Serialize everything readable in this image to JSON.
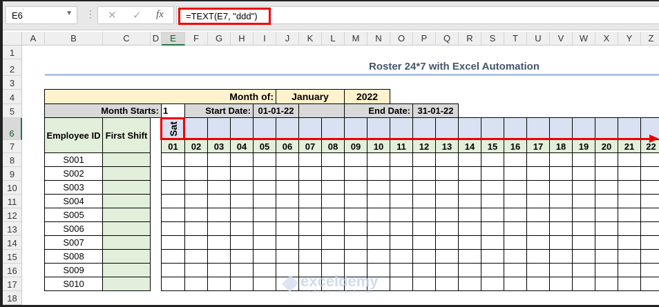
{
  "formula_bar": {
    "name_box": "E6",
    "formula": "=TEXT(E7, \"ddd\")",
    "cancel_icon": "✕",
    "enter_icon": "✓",
    "fx_icon": "fx"
  },
  "columns": [
    "A",
    "B",
    "C",
    "D",
    "E",
    "F",
    "G",
    "H",
    "I",
    "J",
    "K",
    "L",
    "M",
    "N",
    "O",
    "P",
    "Q",
    "R",
    "S",
    "T",
    "U",
    "V",
    "W",
    "X",
    "Y",
    "Z"
  ],
  "rows": [
    "1",
    "2",
    "3",
    "4",
    "5",
    "6",
    "7",
    "8",
    "9",
    "10",
    "11",
    "12",
    "13",
    "14",
    "15",
    "16",
    "17",
    "18"
  ],
  "selected_cell": "E6",
  "sheet": {
    "title": "Roster 24*7  with Excel Automation",
    "month_of_label": "Month of:",
    "month": "January",
    "year": "2022",
    "month_starts_label": "Month Starts:",
    "month_starts": "1",
    "start_date_label": "Start Date:",
    "start_date": "01-01-22",
    "end_date_label": "End Date:",
    "end_date": "31-01-22",
    "employee_id_header": "Employee ID",
    "first_shift_header": "First Shift",
    "weekday_e6": "Sat",
    "days": [
      "01",
      "02",
      "03",
      "04",
      "05",
      "06",
      "07",
      "08",
      "09",
      "10",
      "11",
      "12",
      "13",
      "14",
      "15",
      "16",
      "17",
      "18",
      "19",
      "20",
      "21",
      "22"
    ],
    "employees": [
      "S001",
      "S002",
      "S003",
      "S004",
      "S005",
      "S006",
      "S007",
      "S008",
      "S009",
      "S010"
    ]
  },
  "colors": {
    "header_yellow": "#fff2cc",
    "label_gray": "#d9d9d9",
    "green": "#e2efda",
    "weekday_blue": "#d9e1f2",
    "highlight_red": "#ee0000",
    "title": "#44546a"
  },
  "watermark": {
    "name": "exceldemy",
    "tagline": "EXCEL · DATA · BI"
  }
}
